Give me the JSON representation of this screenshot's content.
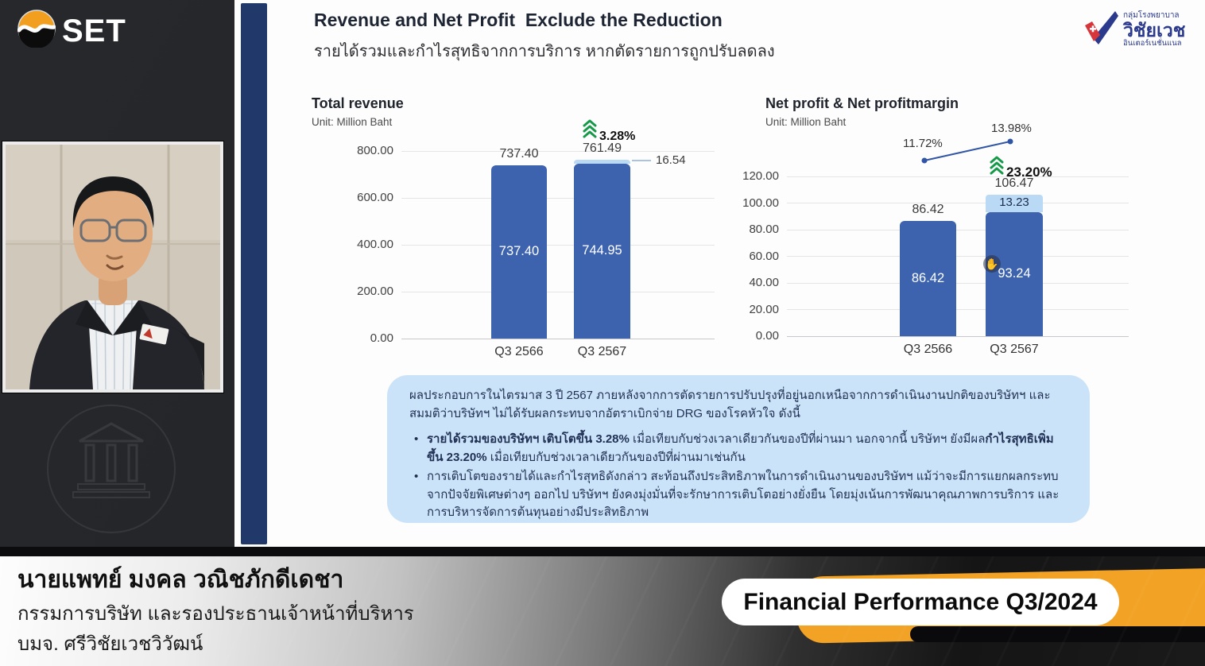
{
  "overlay": {
    "set_logo_text": "SET",
    "speaker": {
      "name": "นายแพทย์ มงคล วณิชภักดีเดชา",
      "title": "กรรมการบริษัท และรองประธานเจ้าหน้าที่บริหาร",
      "company": "บมจ. ศรีวิชัยเวชวิวัฒน์"
    },
    "banner": "Financial Performance Q3/2024"
  },
  "slide": {
    "title": "Revenue and Net Profit  Exclude the Reduction",
    "subtitle_th": "รายได้รวมและกำไรสุทธิจากการบริการ หากตัดรายการถูกปรับลดลง",
    "hospital_logo": {
      "line1": "กลุ่มโรงพยาบาล",
      "line2": "วิชัยเวช",
      "line3": "อินเตอร์เนชั่นแนล"
    },
    "note_box": {
      "intro": "ผลประกอบการในไตรมาส 3 ปี 2567 ภายหลังจากการตัดรายการปรับปรุงที่อยู่นอกเหนือจากการดำเนินงานปกติของบริษัทฯ และสมมติว่าบริษัทฯ ไม่ได้รับผลกระทบจากอัตราเบิกจ่าย DRG ของโรคหัวใจ ดังนี้",
      "bullet1_bold1": "รายได้รวมของบริษัทฯ เติบโตขึ้น 3.28%",
      "bullet1_mid": " เมื่อเทียบกับช่วงเวลาเดียวกันของปีที่ผ่านมา นอกจากนี้ บริษัทฯ ยังมีผล",
      "bullet1_bold2": "กำไรสุทธิเพิ่มขึ้น 23.20%",
      "bullet1_end": " เมื่อเทียบกับช่วงเวลาเดียวกันของปีที่ผ่านมาเช่นกัน",
      "bullet2": "การเติบโตของรายได้และกำไรสุทธิดังกล่าว สะท้อนถึงประสิทธิภาพในการดำเนินงานของบริษัทฯ แม้ว่าจะมีการแยกผลกระทบจากปัจจัยพิเศษต่างๆ ออกไป บริษัทฯ ยังคงมุ่งมั่นที่จะรักษาการเติบโตอย่างยั่งยืน โดยมุ่งเน้นการพัฒนาคุณภาพการบริการ และการบริหารจัดการต้นทุนอย่างมีประสิทธิภาพ"
    }
  },
  "colors": {
    "bar_dark_blue": "#3d63ae",
    "bar_light_blue": "#b9d9f5",
    "growth_green": "#169a4a",
    "margin_line_blue": "#2f55a4",
    "note_box_blue": "#cbe3f8",
    "banner_orange": "#f2a325",
    "navy_sidebar": "#21386b"
  },
  "chart_data": [
    {
      "type": "bar",
      "title": "Total revenue",
      "unit": "Unit: Million Baht",
      "categories": [
        "Q3 2566",
        "Q3 2567"
      ],
      "series": [
        {
          "name": "Revenue",
          "color": "#3d63ae",
          "values": [
            737.4,
            744.95
          ]
        },
        {
          "name": "Excluded reduction",
          "color": "#b9d9f5",
          "values": [
            0,
            16.54
          ]
        }
      ],
      "totals": [
        "737.40",
        "761.49"
      ],
      "inner_labels": [
        "737.40",
        "744.95"
      ],
      "segment_labels": [
        null,
        null
      ],
      "segment_callout": "16.54",
      "growth_badge": "3.28%",
      "ylim": [
        0,
        800
      ],
      "yticks": [
        800,
        600,
        400,
        200,
        0
      ],
      "ytick_labels": [
        "800.00",
        "600.00",
        "400.00",
        "200.00",
        "0.00"
      ],
      "grid": true,
      "legend": "none"
    },
    {
      "type": "bar+line",
      "title": "Net profit & Net profitmargin",
      "unit": "Unit: Million Baht",
      "categories": [
        "Q3 2566",
        "Q3 2567"
      ],
      "series": [
        {
          "name": "Net profit",
          "color": "#3d63ae",
          "values": [
            86.42,
            93.24
          ]
        },
        {
          "name": "Excluded reduction",
          "color": "#b9d9f5",
          "values": [
            0,
            13.23
          ]
        }
      ],
      "totals": [
        "86.42",
        "106.47"
      ],
      "inner_labels": [
        "86.42",
        "93.24"
      ],
      "segment_labels": [
        null,
        "13.23"
      ],
      "line_series": {
        "name": "Net profit margin",
        "values_pct": [
          "11.72%",
          "13.98%"
        ]
      },
      "growth_badge": "23.20%",
      "ylim": [
        0,
        120
      ],
      "yticks": [
        120,
        100,
        80,
        60,
        40,
        20,
        0
      ],
      "ytick_labels": [
        "120.00",
        "100.00",
        "80.00",
        "60.00",
        "40.00",
        "20.00",
        "0.00"
      ],
      "grid": true,
      "legend": "none"
    }
  ]
}
